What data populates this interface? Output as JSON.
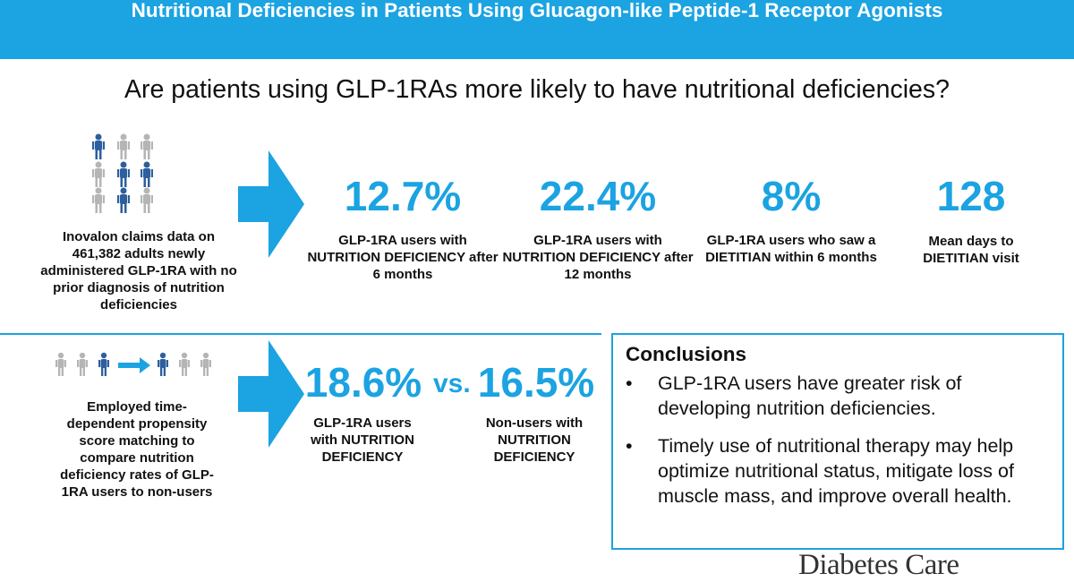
{
  "header": {
    "title": "Nutritional Deficiencies in Patients Using Glucagon-like Peptide-1 Receptor Agonists"
  },
  "question": "Are patients using GLP-1RAs more likely to have nutritional deficiencies?",
  "top_section": {
    "method_text": "Inovalon claims data on 461,382 adults newly administered GLP-1RA with no prior diagnosis of nutrition deficiencies",
    "stats": [
      {
        "value": "12.7%",
        "label": "GLP-1RA users with NUTRITION DEFICIENCY after 6 months"
      },
      {
        "value": "22.4%",
        "label": "GLP-1RA users with NUTRITION DEFICIENCY after 12 months"
      },
      {
        "value": "8%",
        "label": "GLP-1RA users who saw a DIETITIAN within 6 months"
      },
      {
        "value": "128",
        "label": "Mean days to DIETITIAN visit"
      }
    ]
  },
  "bottom_section": {
    "method_text": "Employed time-dependent propensity score matching to compare nutrition deficiency rates of GLP-1RA users to non-users",
    "comparison": {
      "left_value": "18.6%",
      "vs": "vs.",
      "right_value": "16.5%",
      "left_label": "GLP-1RA users with NUTRITION DEFICIENCY",
      "right_label": "Non-users with NUTRITION DEFICIENCY"
    }
  },
  "conclusions": {
    "title": "Conclusions",
    "bullets": [
      "GLP-1RA users have greater risk of developing nutrition deficiencies.",
      "Timely use of nutritional therapy may help optimize nutritional status, mitigate loss of muscle mass, and improve overall health."
    ]
  },
  "brand": "Diabetes Care",
  "colors": {
    "accent": "#1ba3e2",
    "person_dark": "#2d5f9e",
    "person_light": "#b5b5b5"
  },
  "icons": {
    "people_grid": "person-icon",
    "arrow": "right-chevron-arrow-icon",
    "match_arrow": "right-arrow-icon"
  }
}
